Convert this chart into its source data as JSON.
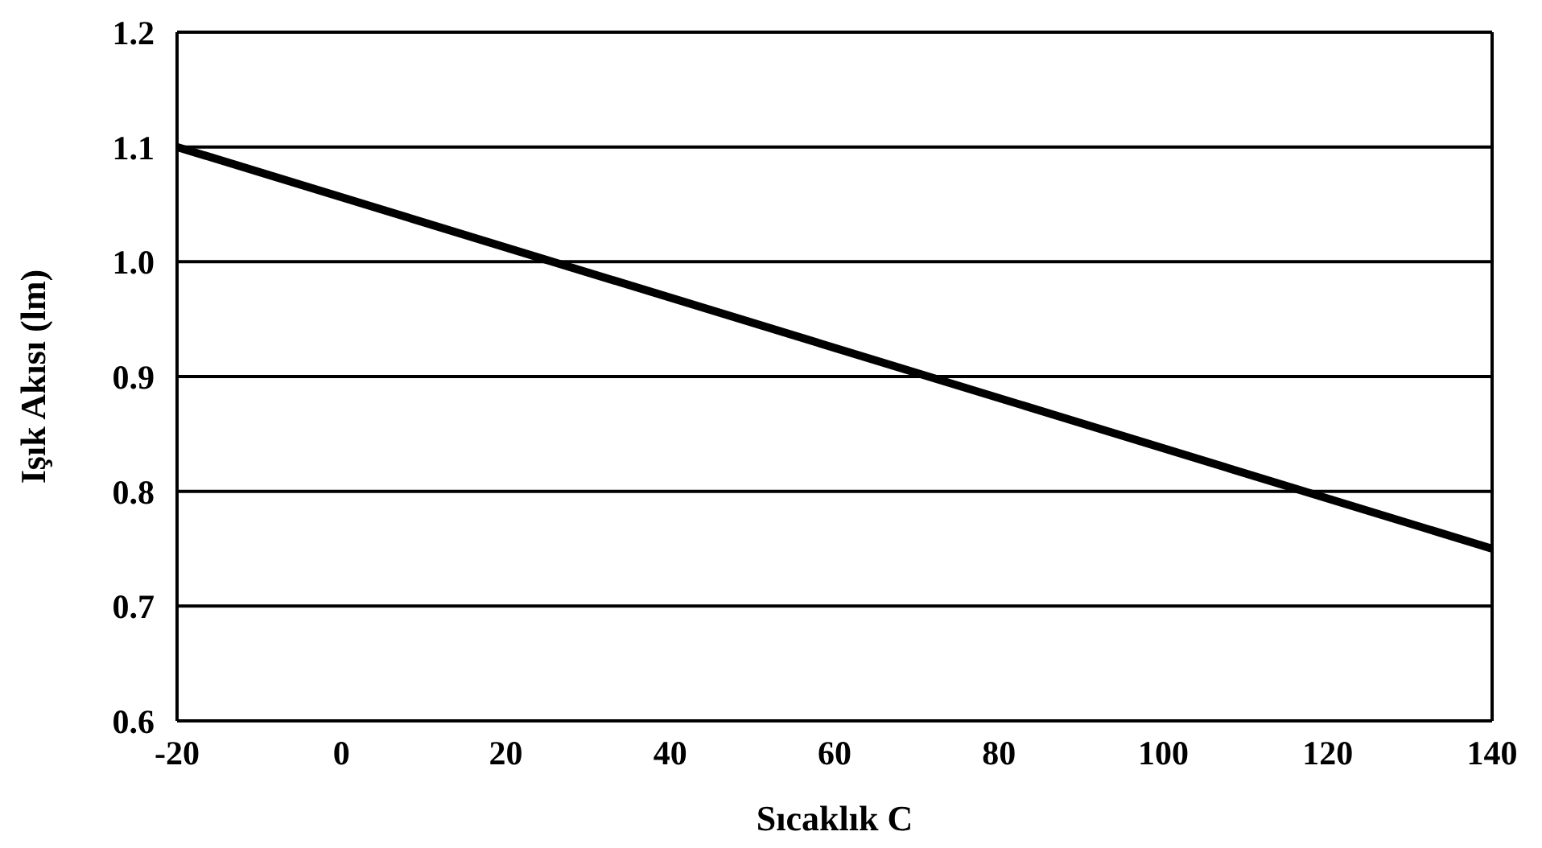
{
  "chart_data": {
    "type": "line",
    "xlabel": "Sıcaklık C",
    "ylabel": "Işık Akısı (lm)",
    "x": [
      -20,
      140
    ],
    "series": [
      {
        "color": "#000000",
        "values": [
          1.1,
          0.75
        ]
      }
    ],
    "xlim": [
      -20,
      140
    ],
    "xticks": [
      -20,
      0,
      20,
      40,
      60,
      80,
      100,
      120,
      140
    ],
    "ylim": [
      0.6,
      1.2
    ],
    "yticks": [
      0.6,
      0.7,
      0.8,
      0.9,
      {
        "value": 1,
        "label": "1.0"
      },
      1.1,
      1.2
    ],
    "grid": "y",
    "legend": false,
    "marker": "none",
    "line_style": "solid"
  }
}
